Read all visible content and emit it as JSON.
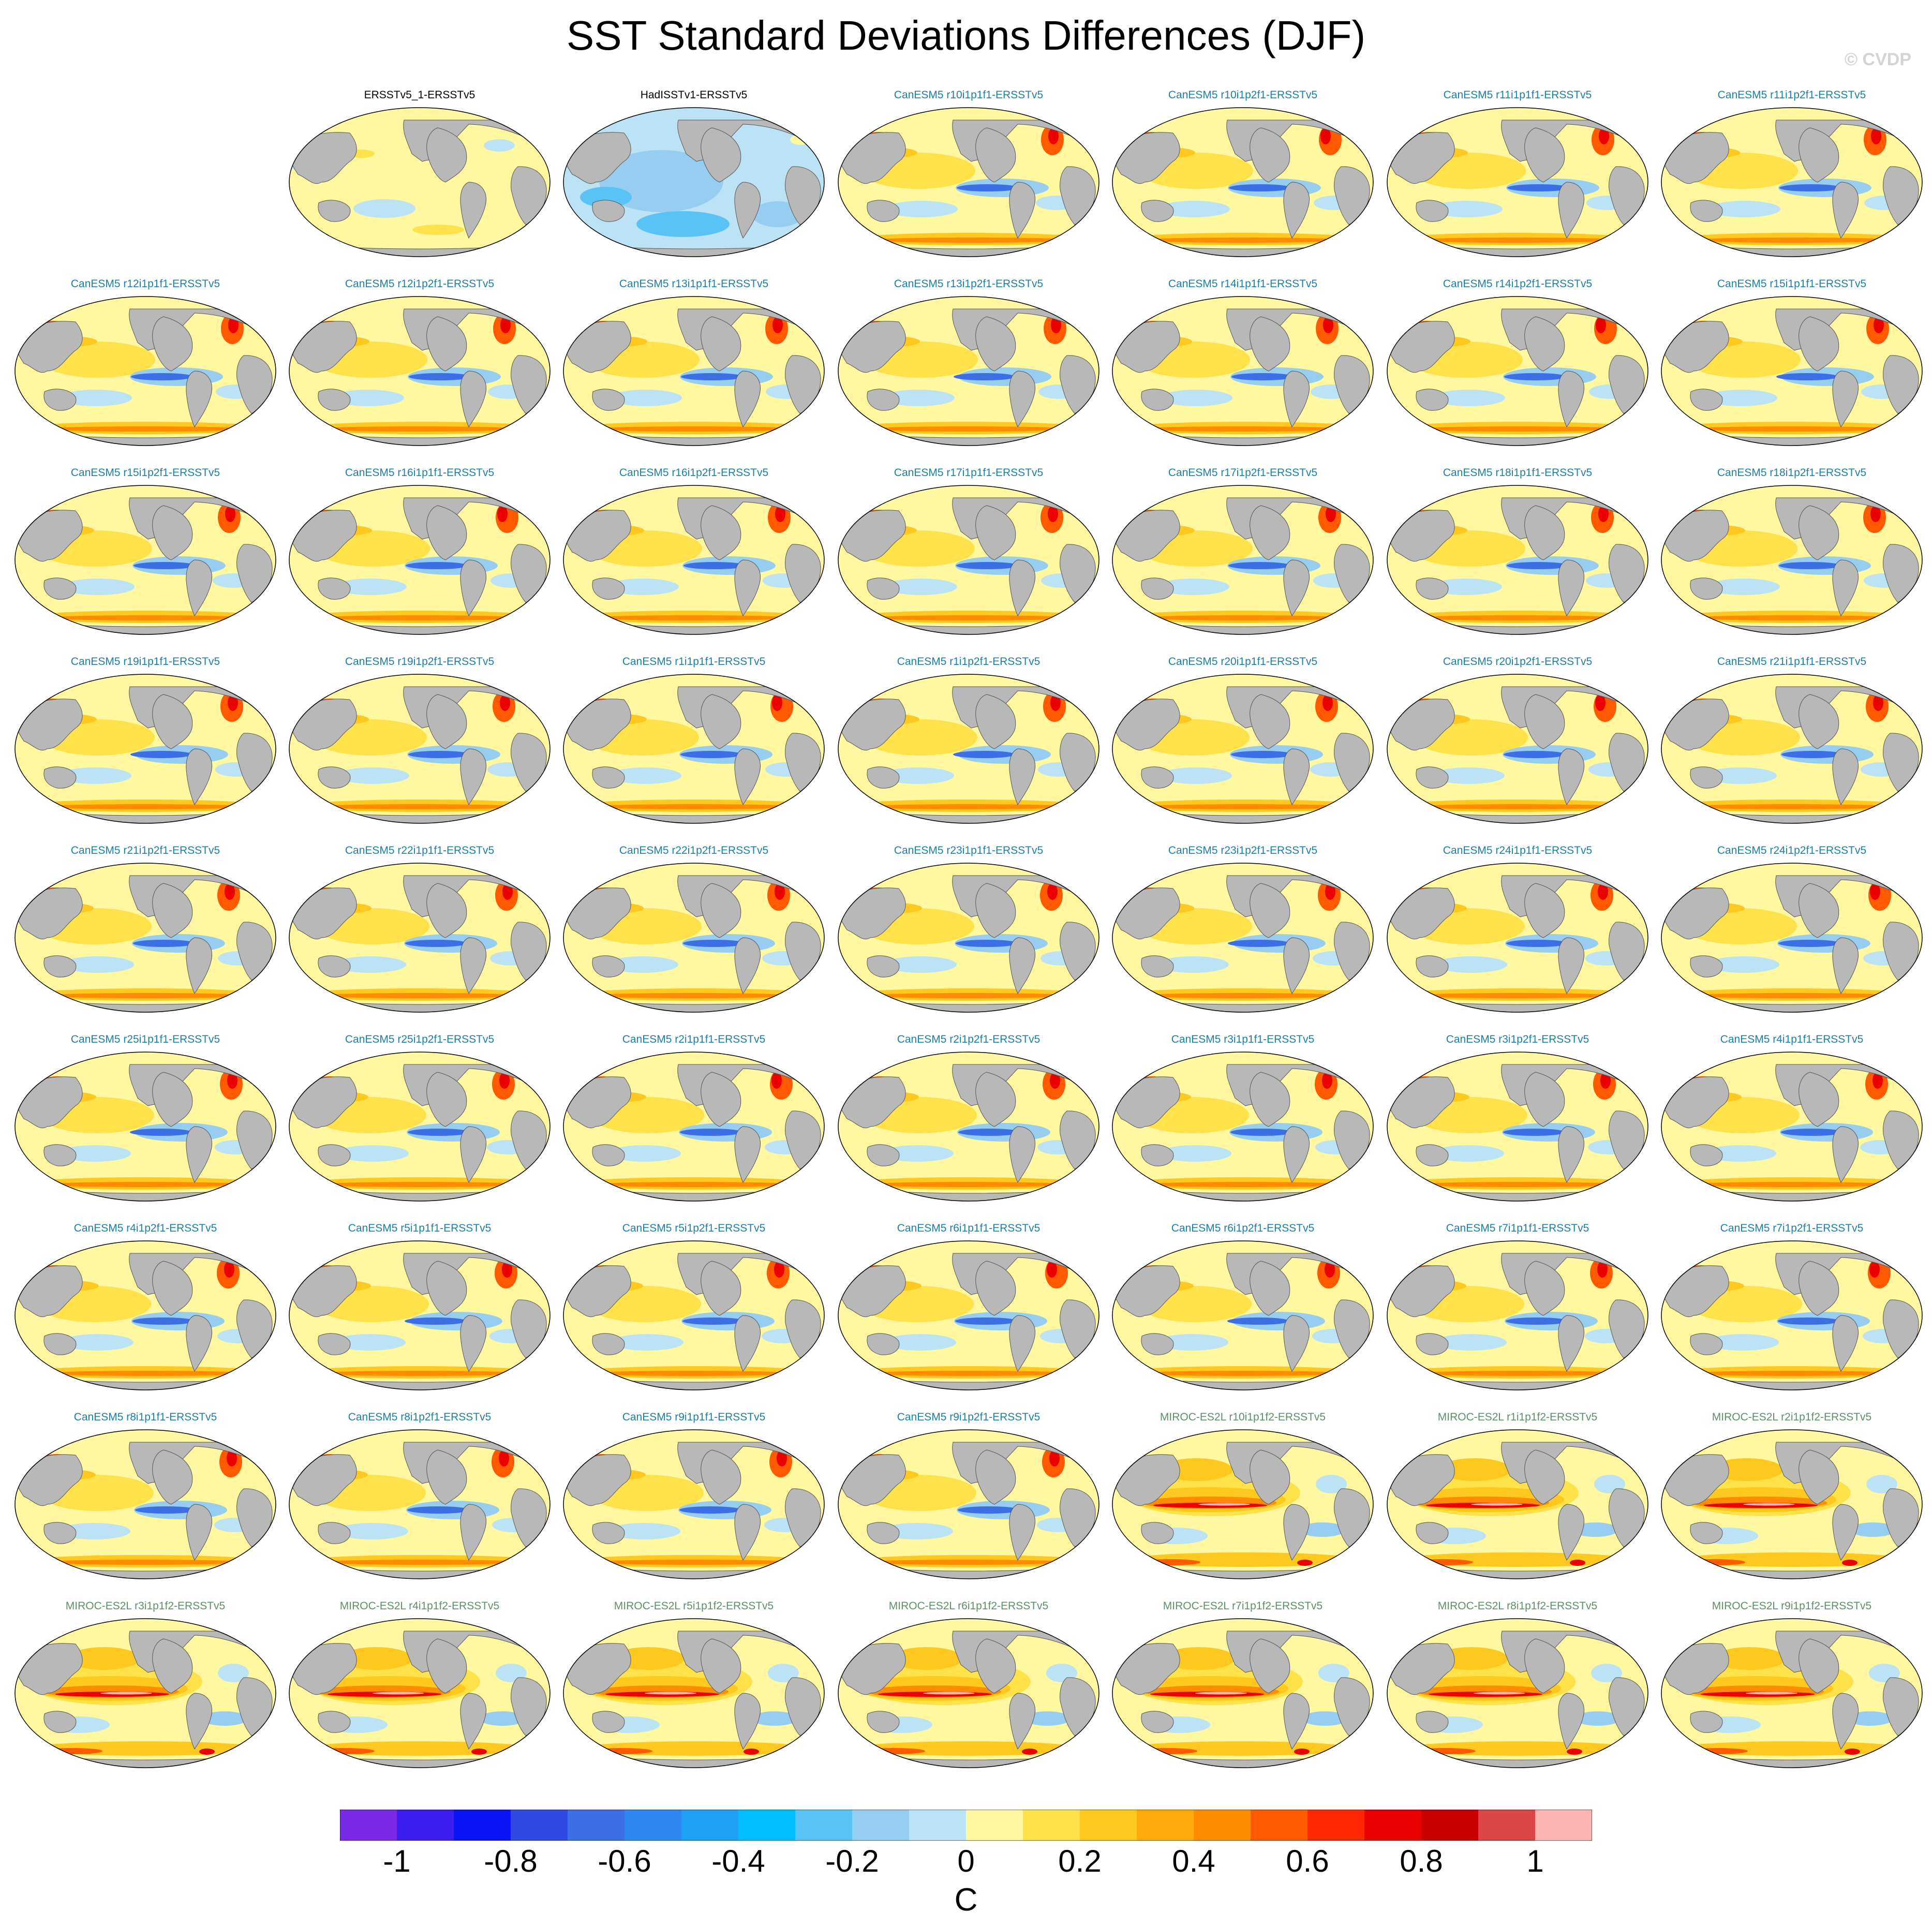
{
  "title": "SST Standard Deviations Differences (DJF)",
  "watermark": "© CVDP",
  "chart_data": {
    "type": "heatmap",
    "subtype": "global map panels (difference of SST standard deviations vs ERSSTv5)",
    "units": "C",
    "colorbar": {
      "ticks": [
        -1,
        -0.8,
        -0.6,
        -0.4,
        -0.2,
        0,
        0.2,
        0.4,
        0.6,
        0.8,
        1
      ],
      "tick_labels": [
        "-1",
        "-0.8",
        "-0.6",
        "-0.4",
        "-0.2",
        "0",
        "0.2",
        "0.4",
        "0.6",
        "0.8",
        "1"
      ],
      "range": [
        -1.1,
        1.1
      ],
      "colors": [
        "#7a2ae6",
        "#3c1ef0",
        "#0a14f5",
        "#2f4ae0",
        "#3c6ee6",
        "#2e86f0",
        "#1ea0f5",
        "#00beff",
        "#5ac3f5",
        "#96cdf0",
        "#bbe3f5",
        "#fff8a0",
        "#ffe24a",
        "#ffc81e",
        "#ffaa0a",
        "#ff8c00",
        "#ff5a00",
        "#ff2800",
        "#eb0000",
        "#c80000",
        "#dc4646",
        "#ffb4b4"
      ]
    },
    "panels": [
      {
        "label": "ERSSTv5_1-ERSSTv5",
        "group": "obs"
      },
      {
        "label": "HadISSTv1-ERSSTv5",
        "group": "obs"
      },
      {
        "label": "CanESM5 r10i1p1f1-ERSSTv5",
        "group": "can"
      },
      {
        "label": "CanESM5 r10i1p2f1-ERSSTv5",
        "group": "can"
      },
      {
        "label": "CanESM5 r11i1p1f1-ERSSTv5",
        "group": "can"
      },
      {
        "label": "CanESM5 r11i1p2f1-ERSSTv5",
        "group": "can"
      },
      {
        "label": "CanESM5 r12i1p1f1-ERSSTv5",
        "group": "can"
      },
      {
        "label": "CanESM5 r12i1p2f1-ERSSTv5",
        "group": "can"
      },
      {
        "label": "CanESM5 r13i1p1f1-ERSSTv5",
        "group": "can"
      },
      {
        "label": "CanESM5 r13i1p2f1-ERSSTv5",
        "group": "can"
      },
      {
        "label": "CanESM5 r14i1p1f1-ERSSTv5",
        "group": "can"
      },
      {
        "label": "CanESM5 r14i1p2f1-ERSSTv5",
        "group": "can"
      },
      {
        "label": "CanESM5 r15i1p1f1-ERSSTv5",
        "group": "can"
      },
      {
        "label": "CanESM5 r15i1p2f1-ERSSTv5",
        "group": "can"
      },
      {
        "label": "CanESM5 r16i1p1f1-ERSSTv5",
        "group": "can"
      },
      {
        "label": "CanESM5 r16i1p2f1-ERSSTv5",
        "group": "can"
      },
      {
        "label": "CanESM5 r17i1p1f1-ERSSTv5",
        "group": "can"
      },
      {
        "label": "CanESM5 r17i1p2f1-ERSSTv5",
        "group": "can"
      },
      {
        "label": "CanESM5 r18i1p1f1-ERSSTv5",
        "group": "can"
      },
      {
        "label": "CanESM5 r18i1p2f1-ERSSTv5",
        "group": "can"
      },
      {
        "label": "CanESM5 r19i1p1f1-ERSSTv5",
        "group": "can"
      },
      {
        "label": "CanESM5 r19i1p2f1-ERSSTv5",
        "group": "can"
      },
      {
        "label": "CanESM5 r1i1p1f1-ERSSTv5",
        "group": "can"
      },
      {
        "label": "CanESM5 r1i1p2f1-ERSSTv5",
        "group": "can"
      },
      {
        "label": "CanESM5 r20i1p1f1-ERSSTv5",
        "group": "can"
      },
      {
        "label": "CanESM5 r20i1p2f1-ERSSTv5",
        "group": "can"
      },
      {
        "label": "CanESM5 r21i1p1f1-ERSSTv5",
        "group": "can"
      },
      {
        "label": "CanESM5 r21i1p2f1-ERSSTv5",
        "group": "can"
      },
      {
        "label": "CanESM5 r22i1p1f1-ERSSTv5",
        "group": "can"
      },
      {
        "label": "CanESM5 r22i1p2f1-ERSSTv5",
        "group": "can"
      },
      {
        "label": "CanESM5 r23i1p1f1-ERSSTv5",
        "group": "can"
      },
      {
        "label": "CanESM5 r23i1p2f1-ERSSTv5",
        "group": "can"
      },
      {
        "label": "CanESM5 r24i1p1f1-ERSSTv5",
        "group": "can"
      },
      {
        "label": "CanESM5 r24i1p2f1-ERSSTv5",
        "group": "can"
      },
      {
        "label": "CanESM5 r25i1p1f1-ERSSTv5",
        "group": "can"
      },
      {
        "label": "CanESM5 r25i1p2f1-ERSSTv5",
        "group": "can"
      },
      {
        "label": "CanESM5 r2i1p1f1-ERSSTv5",
        "group": "can"
      },
      {
        "label": "CanESM5 r2i1p2f1-ERSSTv5",
        "group": "can"
      },
      {
        "label": "CanESM5 r3i1p1f1-ERSSTv5",
        "group": "can"
      },
      {
        "label": "CanESM5 r3i1p2f1-ERSSTv5",
        "group": "can"
      },
      {
        "label": "CanESM5 r4i1p1f1-ERSSTv5",
        "group": "can"
      },
      {
        "label": "CanESM5 r4i1p2f1-ERSSTv5",
        "group": "can"
      },
      {
        "label": "CanESM5 r5i1p1f1-ERSSTv5",
        "group": "can"
      },
      {
        "label": "CanESM5 r5i1p2f1-ERSSTv5",
        "group": "can"
      },
      {
        "label": "CanESM5 r6i1p1f1-ERSSTv5",
        "group": "can"
      },
      {
        "label": "CanESM5 r6i1p2f1-ERSSTv5",
        "group": "can"
      },
      {
        "label": "CanESM5 r7i1p1f1-ERSSTv5",
        "group": "can"
      },
      {
        "label": "CanESM5 r7i1p2f1-ERSSTv5",
        "group": "can"
      },
      {
        "label": "CanESM5 r8i1p1f1-ERSSTv5",
        "group": "can"
      },
      {
        "label": "CanESM5 r8i1p2f1-ERSSTv5",
        "group": "can"
      },
      {
        "label": "CanESM5 r9i1p1f1-ERSSTv5",
        "group": "can"
      },
      {
        "label": "CanESM5 r9i1p2f1-ERSSTv5",
        "group": "can"
      },
      {
        "label": "MIROC-ES2L r10i1p1f2-ERSSTv5",
        "group": "miroc"
      },
      {
        "label": "MIROC-ES2L r1i1p1f2-ERSSTv5",
        "group": "miroc"
      },
      {
        "label": "MIROC-ES2L r2i1p1f2-ERSSTv5",
        "group": "miroc"
      },
      {
        "label": "MIROC-ES2L r3i1p1f2-ERSSTv5",
        "group": "miroc"
      },
      {
        "label": "MIROC-ES2L r4i1p1f2-ERSSTv5",
        "group": "miroc"
      },
      {
        "label": "MIROC-ES2L r5i1p1f2-ERSSTv5",
        "group": "miroc"
      },
      {
        "label": "MIROC-ES2L r6i1p1f2-ERSSTv5",
        "group": "miroc"
      },
      {
        "label": "MIROC-ES2L r7i1p1f2-ERSSTv5",
        "group": "miroc"
      },
      {
        "label": "MIROC-ES2L r8i1p1f2-ERSSTv5",
        "group": "miroc"
      },
      {
        "label": "MIROC-ES2L r9i1p1f2-ERSSTv5",
        "group": "miroc"
      }
    ]
  }
}
